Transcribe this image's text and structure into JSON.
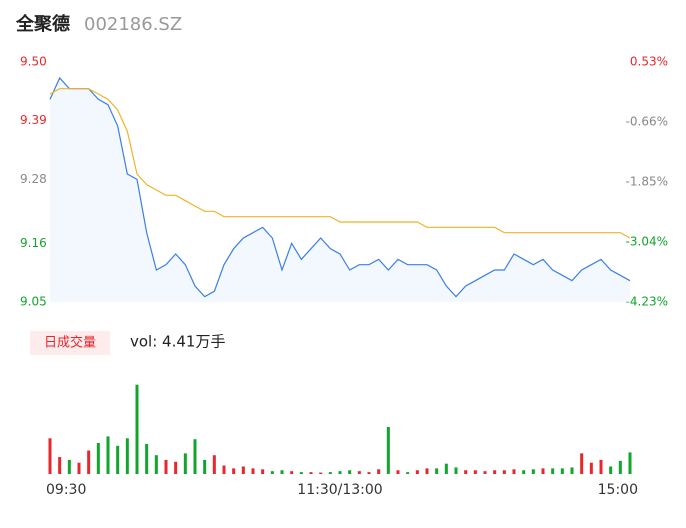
{
  "header": {
    "title": "全聚德",
    "code": "002186.SZ"
  },
  "chart_data": {
    "type": "intraday",
    "x": [
      0,
      4,
      8,
      12,
      16,
      20,
      24,
      28,
      32,
      36,
      40,
      44,
      48,
      52,
      56,
      60,
      64,
      68,
      72,
      76,
      80,
      84,
      88,
      92,
      96,
      100,
      104,
      108,
      112,
      116,
      120,
      124,
      128,
      132,
      136,
      140,
      144,
      148,
      152,
      156,
      160,
      164,
      168,
      172,
      176,
      180,
      184,
      188,
      192,
      196,
      200,
      204,
      208,
      212,
      216,
      220,
      224,
      228,
      232,
      236,
      240
    ],
    "xlim": [
      0,
      240
    ],
    "xticks": [
      {
        "value": 0,
        "label": "09:30"
      },
      {
        "value": 120,
        "label": "11:30/13:00"
      },
      {
        "value": 240,
        "label": "15:00"
      }
    ],
    "ylim": [
      9.05,
      9.5
    ],
    "yticks": [
      {
        "value": 9.5,
        "label": "9.50"
      },
      9.39,
      9.28,
      9.16,
      9.05
    ],
    "y2lim": [
      -4.23,
      0.53
    ],
    "y2ticks": [
      {
        "value": 0.53,
        "label": "0.53%"
      },
      {
        "value": -0.66,
        "label": "-0.66%"
      },
      {
        "value": -1.85,
        "label": "-1.85%"
      },
      {
        "value": -3.04,
        "label": "-3.04%"
      },
      {
        "value": -4.23,
        "label": "-4.23%"
      }
    ],
    "series": [
      {
        "name": "price",
        "color": "#3a7ee8",
        "values": [
          9.43,
          9.47,
          9.45,
          9.45,
          9.45,
          9.43,
          9.42,
          9.38,
          9.29,
          9.28,
          9.18,
          9.11,
          9.12,
          9.14,
          9.12,
          9.08,
          9.06,
          9.07,
          9.12,
          9.15,
          9.17,
          9.18,
          9.19,
          9.17,
          9.11,
          9.16,
          9.13,
          9.15,
          9.17,
          9.15,
          9.14,
          9.11,
          9.12,
          9.12,
          9.13,
          9.11,
          9.13,
          9.12,
          9.12,
          9.12,
          9.11,
          9.08,
          9.06,
          9.08,
          9.09,
          9.1,
          9.11,
          9.11,
          9.14,
          9.13,
          9.12,
          9.13,
          9.11,
          9.1,
          9.09,
          9.11,
          9.12,
          9.13,
          9.11,
          9.1,
          9.09
        ]
      },
      {
        "name": "average",
        "color": "#f0b429",
        "values": [
          9.44,
          9.45,
          9.45,
          9.45,
          9.45,
          9.44,
          9.43,
          9.41,
          9.37,
          9.29,
          9.27,
          9.26,
          9.25,
          9.25,
          9.24,
          9.23,
          9.22,
          9.22,
          9.21,
          9.21,
          9.21,
          9.21,
          9.21,
          9.21,
          9.21,
          9.21,
          9.21,
          9.21,
          9.21,
          9.21,
          9.2,
          9.2,
          9.2,
          9.2,
          9.2,
          9.2,
          9.2,
          9.2,
          9.2,
          9.19,
          9.19,
          9.19,
          9.19,
          9.19,
          9.19,
          9.19,
          9.19,
          9.18,
          9.18,
          9.18,
          9.18,
          9.18,
          9.18,
          9.18,
          9.18,
          9.18,
          9.18,
          9.18,
          9.18,
          9.18,
          9.17
        ]
      }
    ],
    "volume": {
      "button": "日成交量",
      "label": "vol: 4.41万手",
      "ylim": [
        0,
        1000
      ],
      "up_color": "#e8262d",
      "down_color": "#11a52d",
      "values": [
        380,
        180,
        150,
        120,
        250,
        330,
        400,
        300,
        380,
        950,
        320,
        200,
        150,
        130,
        220,
        370,
        150,
        200,
        90,
        60,
        80,
        60,
        50,
        30,
        40,
        30,
        20,
        20,
        15,
        20,
        30,
        40,
        30,
        20,
        50,
        500,
        40,
        20,
        40,
        60,
        60,
        110,
        70,
        40,
        40,
        30,
        40,
        40,
        50,
        40,
        50,
        60,
        60,
        60,
        70,
        220,
        120,
        150,
        80,
        140,
        230
      ]
    }
  }
}
